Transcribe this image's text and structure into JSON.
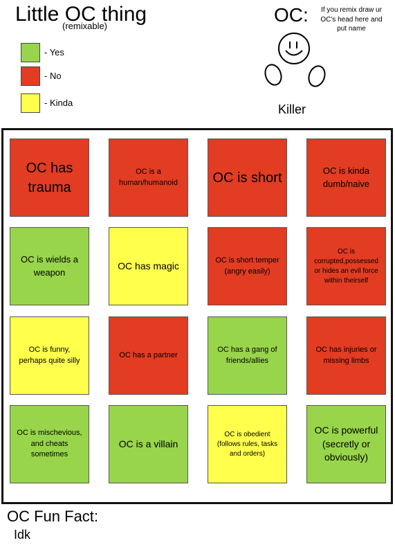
{
  "header": {
    "title": "Little OC thing",
    "subtitle": "(remixable)"
  },
  "legend": [
    {
      "color": "#98d54a",
      "label": "- Yes"
    },
    {
      "color": "#e23c22",
      "label": "- No"
    },
    {
      "color": "#ffff4c",
      "label": "- Kinda"
    }
  ],
  "oc": {
    "label": "OC:",
    "instructions": "If you remix draw ur OC's head here and put name",
    "name": "Killer"
  },
  "cells": [
    {
      "text": "OC has trauma",
      "color": "#e23c22"
    },
    {
      "text": "OC is a human/humanoid",
      "color": "#e23c22"
    },
    {
      "text": "OC is short",
      "color": "#e23c22"
    },
    {
      "text": "OC is kinda dumb/naive",
      "color": "#e23c22"
    },
    {
      "text": "OC is wields a weapon",
      "color": "#98d54a"
    },
    {
      "text": "OC has magic",
      "color": "#ffff4c"
    },
    {
      "text": "OC is short temper (angry easily)",
      "color": "#e23c22"
    },
    {
      "text": "OC is corrupted,possessed or hides an evil force within theirself",
      "color": "#e23c22"
    },
    {
      "text": "OC is funny, perhaps quite silly",
      "color": "#ffff4c"
    },
    {
      "text": "OC has a partner",
      "color": "#e23c22"
    },
    {
      "text": "OC has a gang of friends/allies",
      "color": "#98d54a"
    },
    {
      "text": "OC has injuries or missing limbs",
      "color": "#e23c22"
    },
    {
      "text": "OC is mischevious, and cheats sometimes",
      "color": "#98d54a"
    },
    {
      "text": "OC is a villain",
      "color": "#98d54a"
    },
    {
      "text": "OC is obedient (follows rules, tasks and orders)",
      "color": "#ffff4c"
    },
    {
      "text": "OC is powerful (secretly or obviously)",
      "color": "#98d54a"
    }
  ],
  "fun_fact": {
    "title": "OC Fun Fact:",
    "text": "Idk"
  }
}
